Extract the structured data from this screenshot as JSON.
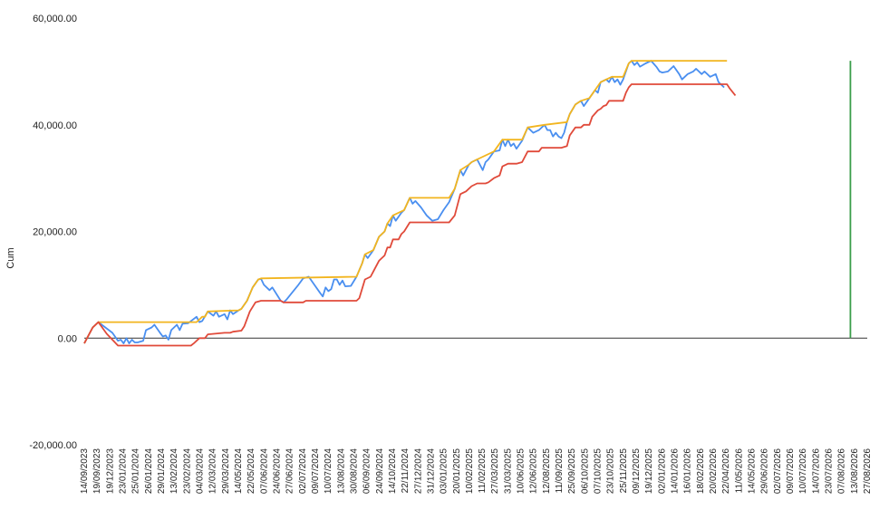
{
  "chart_data": {
    "type": "line",
    "title": "",
    "xlabel": "",
    "ylabel": "Cum",
    "ylim": [
      -20000,
      60000
    ],
    "grid": false,
    "legend": "none",
    "yticks": [
      "60,000.00",
      "40,000.00",
      "20,000.00",
      "0.00",
      "-20,000.00"
    ],
    "ytick_values": [
      60000,
      40000,
      20000,
      0,
      -20000
    ],
    "x_tick_labels": [
      "14/09/2023",
      "19/09/2023",
      "19/12/2023",
      "23/01/2024",
      "25/01/2024",
      "26/01/2024",
      "29/01/2024",
      "13/02/2024",
      "23/02/2024",
      "04/03/2024",
      "12/03/2024",
      "29/03/2024",
      "14/05/2024",
      "22/05/2024",
      "07/06/2024",
      "24/06/2024",
      "27/06/2024",
      "02/07/2024",
      "09/07/2024",
      "10/07/2024",
      "13/08/2024",
      "30/08/2024",
      "06/09/2024",
      "24/09/2024",
      "14/10/2024",
      "22/11/2024",
      "27/12/2024",
      "31/12/2024",
      "03/01/2025",
      "20/01/2025",
      "10/02/2025",
      "11/02/2025",
      "27/03/2025",
      "31/03/2025",
      "10/06/2025",
      "12/06/2025",
      "12/08/2025",
      "11/09/2025",
      "25/09/2025",
      "06/10/2025",
      "07/10/2025",
      "23/10/2025",
      "25/11/2025",
      "09/12/2025",
      "19/12/2025",
      "02/01/2026",
      "14/01/2026",
      "16/01/2026",
      "18/02/2026",
      "20/02/2026",
      "22/04/2026",
      "11/05/2026",
      "14/05/2026",
      "29/06/2026",
      "02/07/2026",
      "09/07/2026",
      "10/07/2026",
      "14/07/2026",
      "23/07/2026",
      "07/08/2026",
      "13/08/2026",
      "27/08/2026"
    ],
    "n_points": 280,
    "marker_x_index": 273,
    "series": [
      {
        "color": "#4a8ff0",
        "keypoints": [
          [
            0,
            -1000
          ],
          [
            3,
            2000
          ],
          [
            5,
            3000
          ],
          [
            10,
            1000
          ],
          [
            12,
            -500
          ],
          [
            13,
            -300
          ],
          [
            14,
            -1000
          ],
          [
            15,
            0
          ],
          [
            16,
            -1000
          ],
          [
            17,
            -300
          ],
          [
            18,
            -800
          ],
          [
            19,
            -800
          ],
          [
            21,
            -500
          ],
          [
            22,
            1500
          ],
          [
            24,
            2000
          ],
          [
            25,
            2500
          ],
          [
            27,
            1000
          ],
          [
            28,
            300
          ],
          [
            29,
            500
          ],
          [
            30,
            -300
          ],
          [
            31,
            1500
          ],
          [
            33,
            2500
          ],
          [
            34,
            1500
          ],
          [
            35,
            2700
          ],
          [
            37,
            2800
          ],
          [
            40,
            4000
          ],
          [
            41,
            3000
          ],
          [
            42,
            3200
          ],
          [
            44,
            5000
          ],
          [
            46,
            4200
          ],
          [
            47,
            5000
          ],
          [
            48,
            4000
          ],
          [
            50,
            4500
          ],
          [
            51,
            3500
          ],
          [
            52,
            5200
          ],
          [
            53,
            4500
          ],
          [
            55,
            5200
          ],
          [
            56,
            5500
          ],
          [
            58,
            7000
          ],
          [
            60,
            9500
          ],
          [
            62,
            11000
          ],
          [
            63,
            11100
          ],
          [
            64,
            10000
          ],
          [
            66,
            9000
          ],
          [
            67,
            9500
          ],
          [
            70,
            7000
          ],
          [
            71,
            6700
          ],
          [
            72,
            7200
          ],
          [
            74,
            8500
          ],
          [
            76,
            9800
          ],
          [
            78,
            11200
          ],
          [
            80,
            11500
          ],
          [
            82,
            10000
          ],
          [
            84,
            8500
          ],
          [
            85,
            7800
          ],
          [
            86,
            9500
          ],
          [
            87,
            8800
          ],
          [
            88,
            9200
          ],
          [
            89,
            11000
          ],
          [
            90,
            11000
          ],
          [
            91,
            10000
          ],
          [
            92,
            10800
          ],
          [
            93,
            9700
          ],
          [
            95,
            9800
          ],
          [
            97,
            11500
          ],
          [
            99,
            14000
          ],
          [
            100,
            15700
          ],
          [
            101,
            15000
          ],
          [
            103,
            16500
          ],
          [
            105,
            19000
          ],
          [
            107,
            20000
          ],
          [
            108,
            21500
          ],
          [
            109,
            21000
          ],
          [
            110,
            23000
          ],
          [
            111,
            22000
          ],
          [
            113,
            23500
          ],
          [
            114,
            24000
          ],
          [
            116,
            26300
          ],
          [
            117,
            25200
          ],
          [
            118,
            25700
          ],
          [
            120,
            24500
          ],
          [
            122,
            23000
          ],
          [
            124,
            22000
          ],
          [
            126,
            22300
          ],
          [
            128,
            24000
          ],
          [
            130,
            25500
          ],
          [
            132,
            28000
          ],
          [
            134,
            31500
          ],
          [
            135,
            30500
          ],
          [
            137,
            32500
          ],
          [
            138,
            33000
          ],
          [
            140,
            33500
          ],
          [
            142,
            31500
          ],
          [
            143,
            33000
          ],
          [
            144,
            33500
          ],
          [
            146,
            35000
          ],
          [
            148,
            35200
          ],
          [
            149,
            37200
          ],
          [
            150,
            36000
          ],
          [
            151,
            37200
          ],
          [
            152,
            36000
          ],
          [
            153,
            36500
          ],
          [
            154,
            35500
          ],
          [
            156,
            37000
          ],
          [
            158,
            39500
          ],
          [
            160,
            38500
          ],
          [
            162,
            39000
          ],
          [
            164,
            40000
          ],
          [
            165,
            39000
          ],
          [
            166,
            39000
          ],
          [
            167,
            37800
          ],
          [
            168,
            38500
          ],
          [
            169,
            37800
          ],
          [
            170,
            37500
          ],
          [
            171,
            38500
          ],
          [
            172,
            40500
          ],
          [
            173,
            42000
          ],
          [
            175,
            43800
          ],
          [
            177,
            44500
          ],
          [
            178,
            43500
          ],
          [
            180,
            45000
          ],
          [
            182,
            46500
          ],
          [
            183,
            46000
          ],
          [
            184,
            48000
          ],
          [
            186,
            48500
          ],
          [
            187,
            48000
          ],
          [
            188,
            49000
          ],
          [
            189,
            48000
          ],
          [
            190,
            48500
          ],
          [
            191,
            47500
          ],
          [
            192,
            48500
          ],
          [
            194,
            51500
          ],
          [
            195,
            52000
          ],
          [
            196,
            51200
          ],
          [
            197,
            51700
          ],
          [
            198,
            50900
          ],
          [
            200,
            51500
          ],
          [
            202,
            52000
          ],
          [
            204,
            50800
          ],
          [
            205,
            50000
          ],
          [
            206,
            49800
          ],
          [
            208,
            50000
          ],
          [
            210,
            51000
          ],
          [
            212,
            49500
          ],
          [
            213,
            48500
          ],
          [
            215,
            49500
          ],
          [
            217,
            50000
          ],
          [
            218,
            50500
          ],
          [
            220,
            49500
          ],
          [
            221,
            50000
          ],
          [
            222,
            49500
          ],
          [
            223,
            49000
          ],
          [
            225,
            49500
          ],
          [
            226,
            48000
          ],
          [
            228,
            47000
          ]
        ]
      },
      {
        "color": "#f2b51f",
        "keypoints": [
          [
            0,
            -1000
          ],
          [
            3,
            2000
          ],
          [
            5,
            3000
          ],
          [
            40,
            3000
          ],
          [
            42,
            4000
          ],
          [
            43,
            4000
          ],
          [
            44,
            5000
          ],
          [
            55,
            5200
          ],
          [
            56,
            5500
          ],
          [
            58,
            7000
          ],
          [
            60,
            9500
          ],
          [
            62,
            11000
          ],
          [
            63,
            11200
          ],
          [
            97,
            11500
          ],
          [
            99,
            14000
          ],
          [
            100,
            15700
          ],
          [
            103,
            16500
          ],
          [
            105,
            19000
          ],
          [
            107,
            20000
          ],
          [
            108,
            21500
          ],
          [
            110,
            23000
          ],
          [
            114,
            24000
          ],
          [
            116,
            26300
          ],
          [
            130,
            26300
          ],
          [
            132,
            28000
          ],
          [
            134,
            31500
          ],
          [
            137,
            32500
          ],
          [
            138,
            33000
          ],
          [
            140,
            33500
          ],
          [
            146,
            35000
          ],
          [
            149,
            37200
          ],
          [
            156,
            37200
          ],
          [
            158,
            39500
          ],
          [
            164,
            40000
          ],
          [
            172,
            40500
          ],
          [
            173,
            42000
          ],
          [
            175,
            43800
          ],
          [
            177,
            44500
          ],
          [
            180,
            45000
          ],
          [
            182,
            46500
          ],
          [
            184,
            48000
          ],
          [
            186,
            48500
          ],
          [
            188,
            49000
          ],
          [
            192,
            49000
          ],
          [
            194,
            51500
          ],
          [
            195,
            52000
          ],
          [
            229,
            52000
          ]
        ]
      },
      {
        "color": "#e04a3a",
        "keypoints": [
          [
            0,
            -1000
          ],
          [
            3,
            2000
          ],
          [
            5,
            3000
          ],
          [
            8,
            800
          ],
          [
            12,
            -1400
          ],
          [
            38,
            -1400
          ],
          [
            39,
            -1000
          ],
          [
            41,
            0
          ],
          [
            43,
            0
          ],
          [
            44,
            700
          ],
          [
            50,
            1000
          ],
          [
            52,
            1000
          ],
          [
            53,
            1200
          ],
          [
            56,
            1400
          ],
          [
            57,
            2200
          ],
          [
            59,
            5000
          ],
          [
            61,
            6700
          ],
          [
            63,
            7000
          ],
          [
            70,
            7000
          ],
          [
            71,
            6700
          ],
          [
            78,
            6700
          ],
          [
            79,
            7000
          ],
          [
            97,
            7000
          ],
          [
            98,
            7500
          ],
          [
            100,
            11000
          ],
          [
            102,
            11500
          ],
          [
            103,
            12500
          ],
          [
            105,
            14500
          ],
          [
            107,
            15500
          ],
          [
            108,
            17000
          ],
          [
            109,
            17000
          ],
          [
            110,
            18500
          ],
          [
            112,
            18500
          ],
          [
            113,
            19500
          ],
          [
            114,
            20000
          ],
          [
            116,
            21700
          ],
          [
            130,
            21700
          ],
          [
            132,
            23000
          ],
          [
            134,
            27000
          ],
          [
            136,
            27500
          ],
          [
            138,
            28500
          ],
          [
            140,
            29000
          ],
          [
            143,
            29000
          ],
          [
            144,
            29200
          ],
          [
            146,
            30000
          ],
          [
            148,
            30500
          ],
          [
            149,
            32200
          ],
          [
            151,
            32700
          ],
          [
            154,
            32700
          ],
          [
            156,
            33000
          ],
          [
            158,
            35000
          ],
          [
            162,
            35000
          ],
          [
            163,
            35700
          ],
          [
            170,
            35700
          ],
          [
            172,
            36000
          ],
          [
            173,
            38000
          ],
          [
            175,
            39500
          ],
          [
            177,
            39500
          ],
          [
            178,
            40000
          ],
          [
            180,
            40000
          ],
          [
            181,
            41500
          ],
          [
            183,
            42700
          ],
          [
            184,
            43000
          ],
          [
            185,
            43500
          ],
          [
            186,
            43700
          ],
          [
            187,
            44500
          ],
          [
            192,
            44500
          ],
          [
            193,
            46000
          ],
          [
            194,
            47000
          ],
          [
            195,
            47600
          ],
          [
            229,
            47600
          ],
          [
            230,
            46800
          ],
          [
            232,
            45500
          ]
        ]
      }
    ],
    "marker_line_color": "#3a9e4a"
  }
}
